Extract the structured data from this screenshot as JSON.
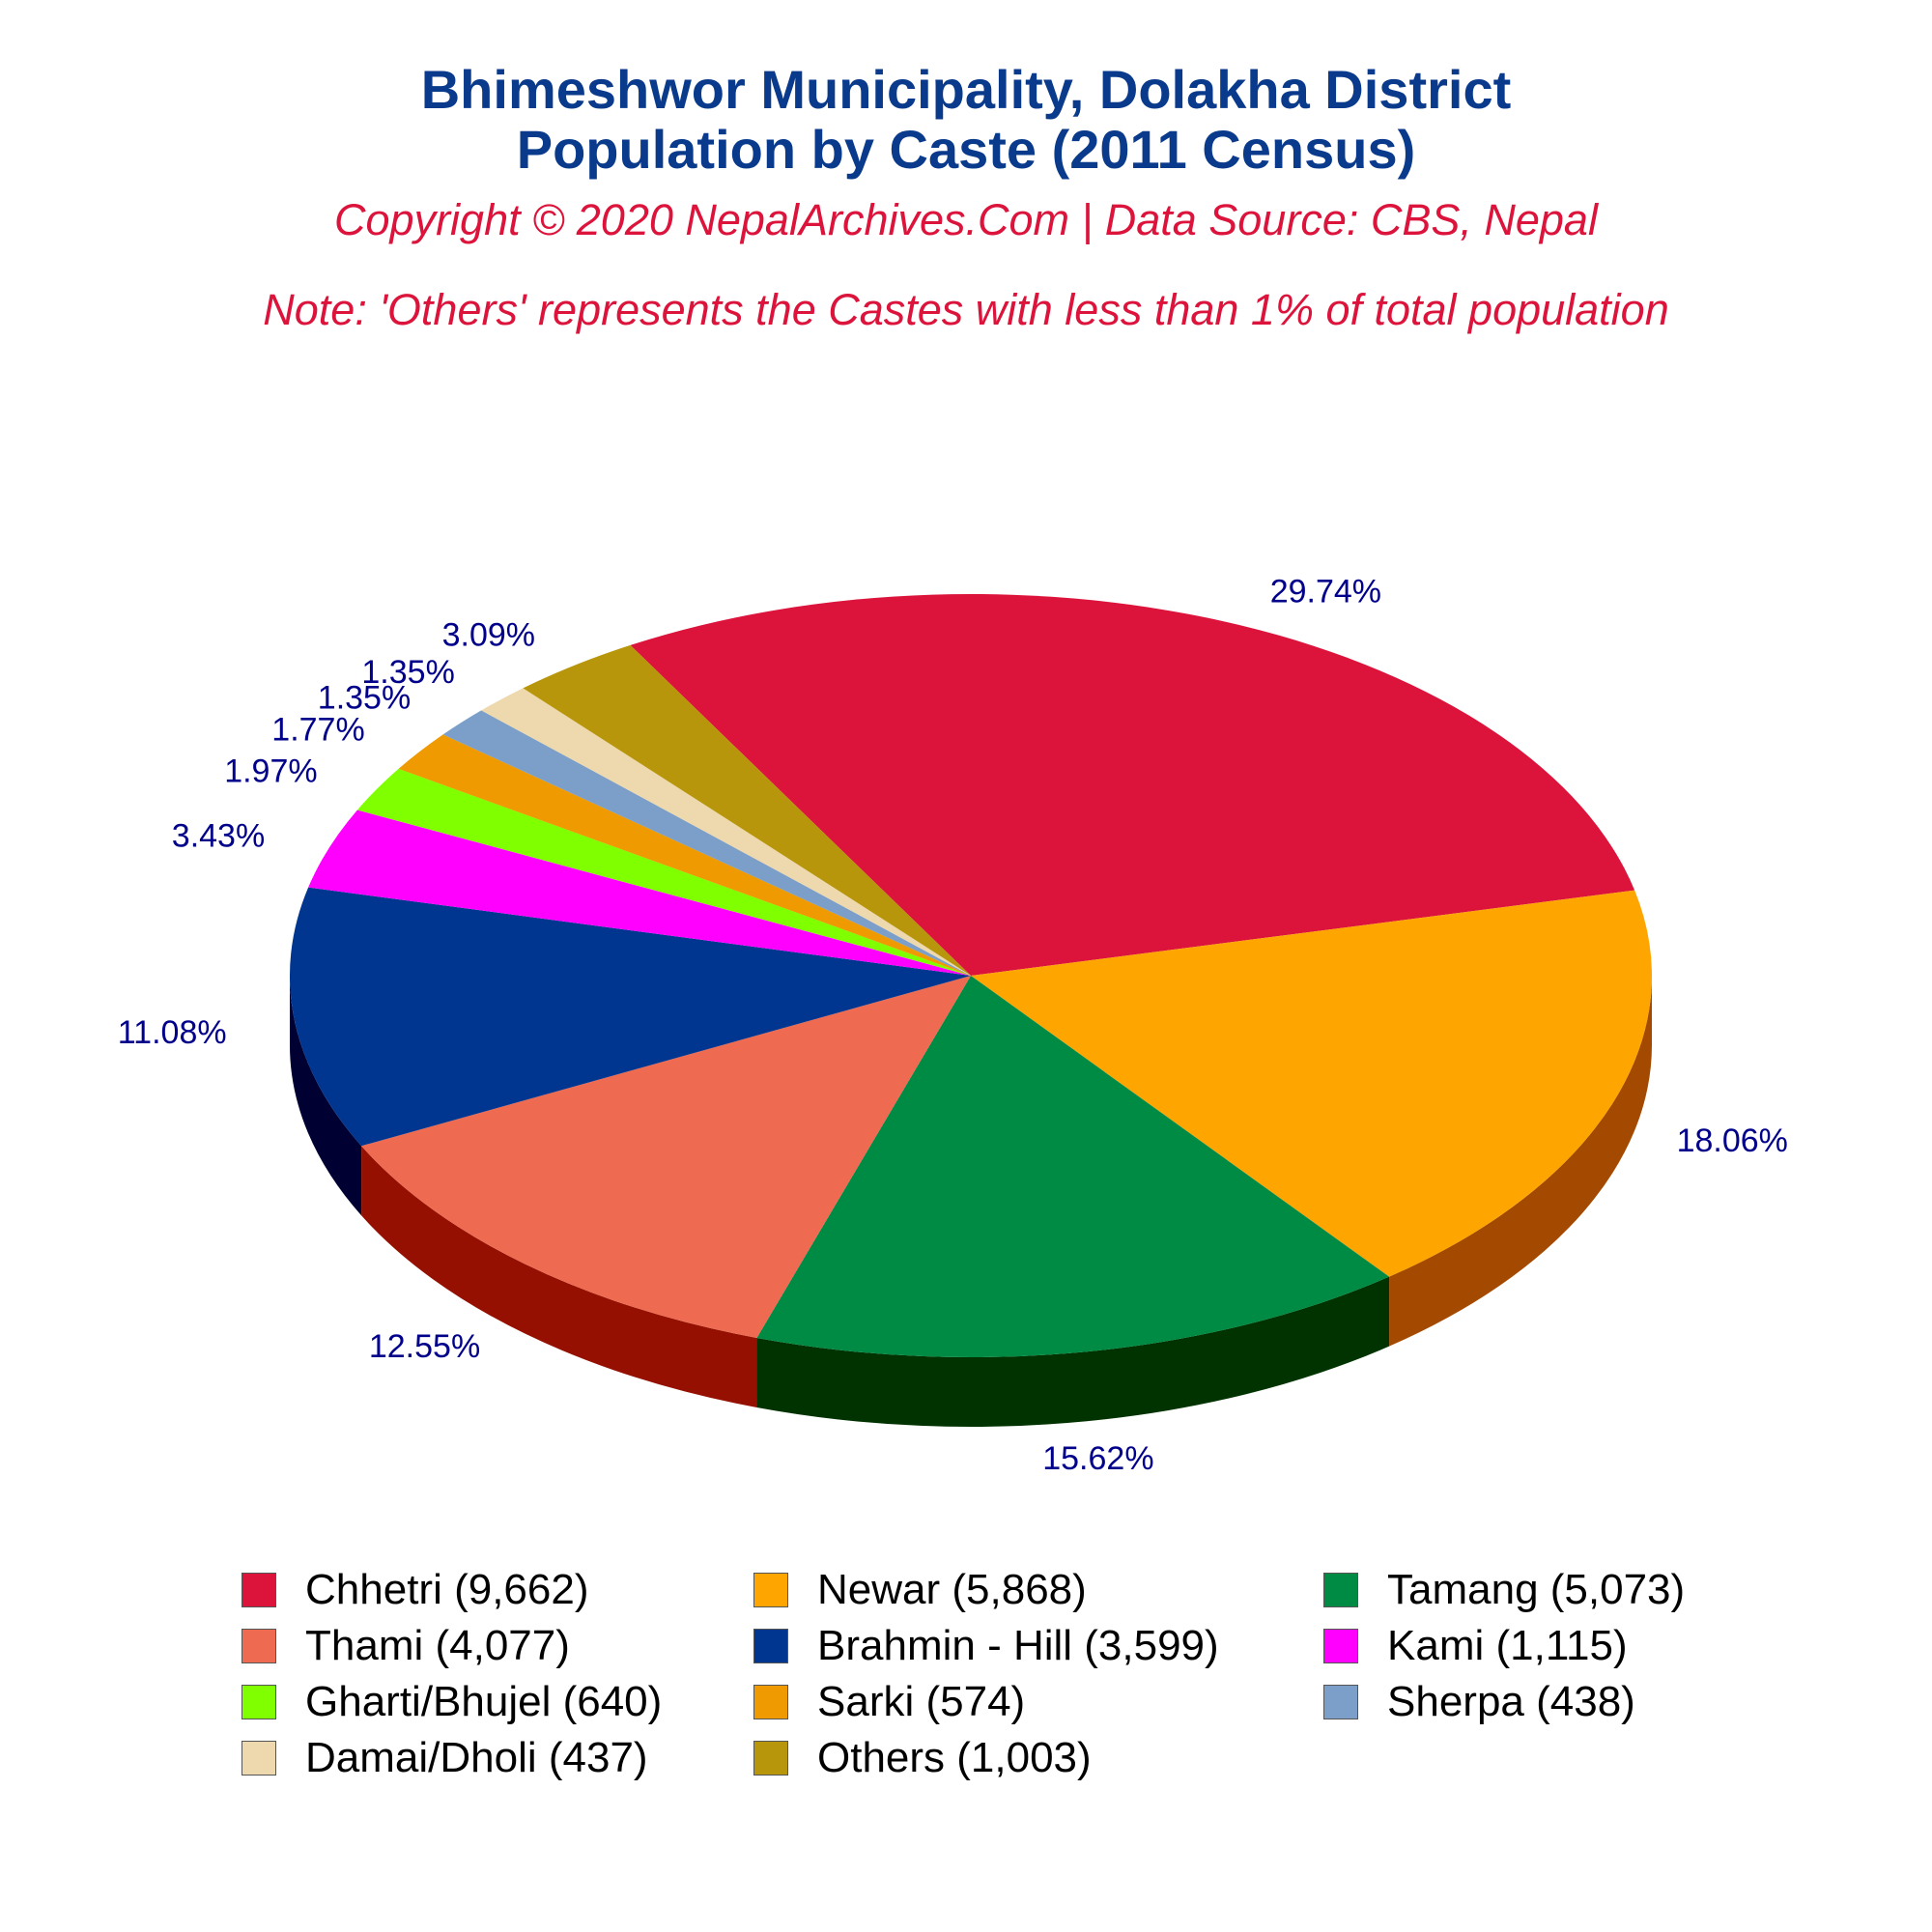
{
  "header": {
    "title_line1": "Bhimeshwor Municipality, Dolakha District",
    "title_line2": "Population by Caste (2011 Census)",
    "copyright": "Copyright © 2020 NepalArchives.Com | Data Source: CBS, Nepal",
    "note": "Note: 'Others' represents the Castes with less than 1% of total population"
  },
  "chart_data": {
    "type": "pie",
    "style": "3d",
    "title": "Bhimeshwor Municipality, Dolakha District Population by Caste (2011 Census)",
    "legend_position": "bottom",
    "slices": [
      {
        "name": "Chhetri",
        "value": 9662,
        "percent_label": "29.74%",
        "legend_label": "Chhetri (9,662)",
        "color": "#dc143c",
        "side_color": "#8b0000"
      },
      {
        "name": "Newar",
        "value": 5868,
        "percent_label": "18.06%",
        "legend_label": "Newar (5,868)",
        "color": "#ffa500",
        "side_color": "#a34a00"
      },
      {
        "name": "Tamang",
        "value": 5073,
        "percent_label": "15.62%",
        "legend_label": "Tamang (5,073)",
        "color": "#008b45",
        "side_color": "#003300"
      },
      {
        "name": "Thami",
        "value": 4077,
        "percent_label": "12.55%",
        "legend_label": "Thami (4,077)",
        "color": "#ee6a50",
        "side_color": "#951000"
      },
      {
        "name": "Brahmin - Hill",
        "value": 3599,
        "percent_label": "11.08%",
        "legend_label": "Brahmin - Hill (3,599)",
        "color": "#00368f",
        "side_color": "#000033"
      },
      {
        "name": "Kami",
        "value": 1115,
        "percent_label": "3.43%",
        "legend_label": "Kami (1,115)",
        "color": "#ff00ff",
        "side_color": "#8b008b"
      },
      {
        "name": "Gharti/Bhujel",
        "value": 640,
        "percent_label": "1.97%",
        "legend_label": "Gharti/Bhujel (640)",
        "color": "#7fff00",
        "side_color": "#458b00"
      },
      {
        "name": "Sarki",
        "value": 574,
        "percent_label": "1.77%",
        "legend_label": "Sarki (574)",
        "color": "#ee9a00",
        "side_color": "#8b5a00"
      },
      {
        "name": "Sherpa",
        "value": 438,
        "percent_label": "1.35%",
        "legend_label": "Sherpa (438)",
        "color": "#7b9fc8",
        "side_color": "#4a6080"
      },
      {
        "name": "Damai/Dholi",
        "value": 437,
        "percent_label": "1.35%",
        "legend_label": "Damai/Dholi (437)",
        "color": "#eed8ae",
        "side_color": "#a89070"
      },
      {
        "name": "Others",
        "value": 1003,
        "percent_label": "3.09%",
        "legend_label": "Others (1,003)",
        "color": "#b8960c",
        "side_color": "#6b5600"
      }
    ]
  }
}
